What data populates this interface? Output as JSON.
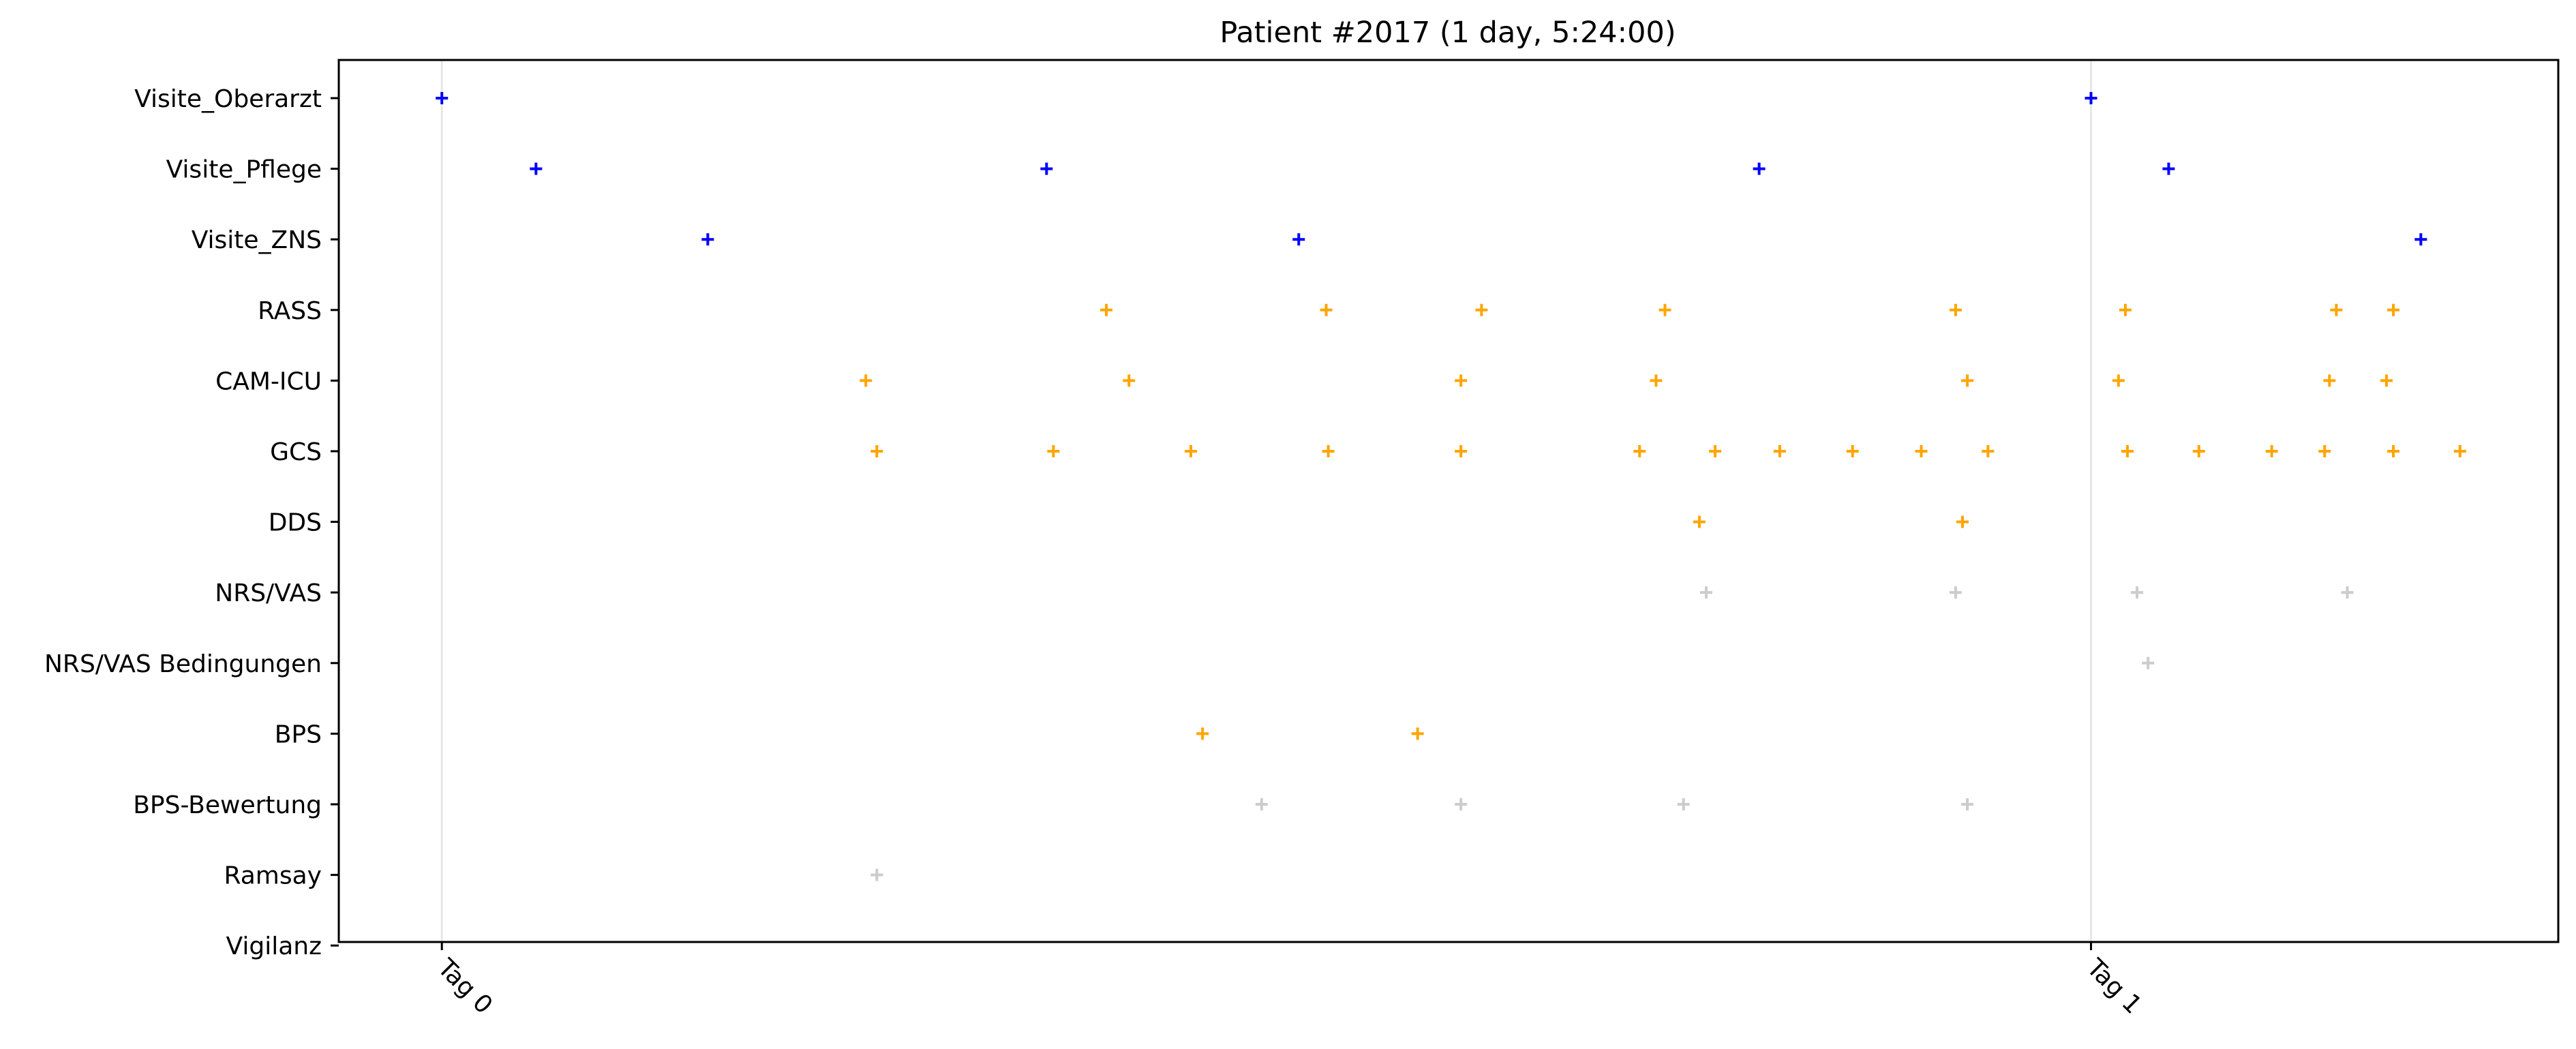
{
  "chart_data": {
    "type": "scatter",
    "title": "Patient #2017 (1 day, 5:24:00)",
    "xlabel": "",
    "ylabel": "",
    "marker": "+",
    "x_unit": "hours since Tag 0",
    "xlim": [
      -1.5,
      30.8
    ],
    "x_ticks": [
      {
        "label": "Tag 0",
        "value": 0
      },
      {
        "label": "Tag 1",
        "value": 24
      }
    ],
    "day_lines": [
      0,
      24
    ],
    "categories": [
      "Visite_Oberarzt",
      "Visite_Pflege",
      "Visite_ZNS",
      "RASS",
      "CAM-ICU",
      "GCS",
      "DDS",
      "NRS/VAS",
      "NRS/VAS Bedingungen",
      "BPS",
      "BPS-Bewertung",
      "Ramsay",
      "Vigilanz"
    ],
    "colors": {
      "Visite_Oberarzt": "#0000ff",
      "Visite_Pflege": "#0000ff",
      "Visite_ZNS": "#0000ff",
      "RASS": "#ffa500",
      "CAM-ICU": "#ffa500",
      "GCS": "#ffa500",
      "DDS": "#ffa500",
      "NRS/VAS": "#cccccc",
      "NRS/VAS Bedingungen": "#cccccc",
      "BPS": "#ffa500",
      "BPS-Bewertung": "#cccccc",
      "Ramsay": "#cccccc",
      "Vigilanz": "#cccccc"
    },
    "series": [
      {
        "category": "Visite_Oberarzt",
        "x": [
          0.0,
          24.0
        ]
      },
      {
        "category": "Visite_Pflege",
        "x": [
          1.37,
          8.8,
          19.17,
          25.13
        ]
      },
      {
        "category": "Visite_ZNS",
        "x": [
          3.87,
          12.47,
          28.8
        ]
      },
      {
        "category": "RASS",
        "x": [
          9.67,
          12.87,
          15.13,
          17.8,
          22.03,
          24.5,
          27.57,
          28.4
        ]
      },
      {
        "category": "CAM-ICU",
        "x": [
          6.17,
          10.0,
          14.83,
          17.67,
          22.2,
          24.4,
          27.47,
          28.3
        ]
      },
      {
        "category": "GCS",
        "x": [
          6.33,
          8.9,
          10.9,
          12.9,
          14.83,
          17.43,
          18.53,
          19.47,
          20.53,
          21.53,
          22.5,
          24.53,
          25.57,
          26.63,
          27.4,
          28.4,
          29.37
        ]
      },
      {
        "category": "DDS",
        "x": [
          18.3,
          22.13
        ]
      },
      {
        "category": "NRS/VAS",
        "x": [
          18.4,
          22.03,
          24.67,
          27.73
        ]
      },
      {
        "category": "NRS/VAS Bedingungen",
        "x": [
          24.83
        ]
      },
      {
        "category": "BPS",
        "x": [
          11.07,
          14.2
        ]
      },
      {
        "category": "BPS-Bewertung",
        "x": [
          11.93,
          14.83,
          18.07,
          22.2
        ]
      },
      {
        "category": "Ramsay",
        "x": [
          6.33
        ]
      },
      {
        "category": "Vigilanz",
        "x": []
      }
    ],
    "grid": false,
    "legend": "none"
  }
}
